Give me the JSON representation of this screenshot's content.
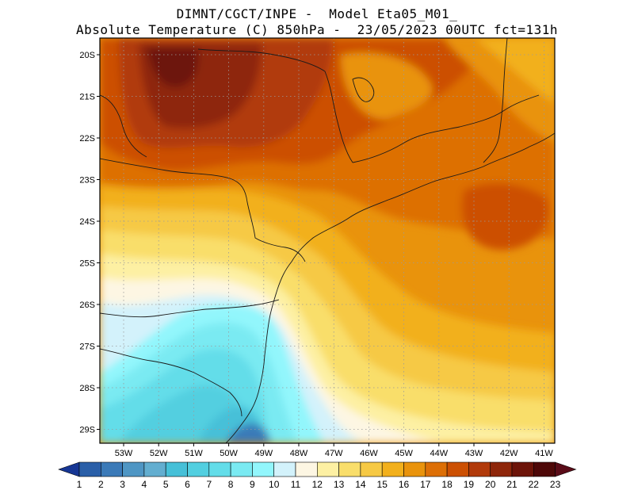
{
  "header": {
    "line1": "DIMNT/CGCT/INPE -  Model Eta05_M01_",
    "line2": "Absolute Temperature (C) 850hPa -  23/05/2023 00UTC fct=131h"
  },
  "map": {
    "lat_labels": [
      "20S",
      "21S",
      "22S",
      "23S",
      "24S",
      "25S",
      "26S",
      "27S",
      "28S",
      "29S"
    ],
    "lon_labels": [
      "53W",
      "52W",
      "51W",
      "50W",
      "49W",
      "48W",
      "47W",
      "46W",
      "45W",
      "44W",
      "43W",
      "42W",
      "41W"
    ],
    "gridlines": true
  },
  "colorbar": {
    "labels": [
      "1",
      "2",
      "3",
      "4",
      "5",
      "6",
      "7",
      "8",
      "9",
      "10",
      "11",
      "12",
      "13",
      "14",
      "15",
      "16",
      "17",
      "18",
      "19",
      "20",
      "21",
      "22",
      "23"
    ],
    "colors": [
      "#1f3d99",
      "#2a5fa8",
      "#3b7ab8",
      "#4f96c4",
      "#63aed0",
      "#46c0d8",
      "#52cfe0",
      "#63dde9",
      "#7aeaf2",
      "#92f6fc",
      "#d3f2fb",
      "#fdf6e3",
      "#fdf0a3",
      "#f9de6b",
      "#f6c944",
      "#f2b01c",
      "#e9930c",
      "#dd6f06",
      "#cc5003",
      "#b13a0a",
      "#8e260a",
      "#6d1409",
      "#4e0808"
    ],
    "under_color": "#163694",
    "over_color": "#5a0c18"
  }
}
